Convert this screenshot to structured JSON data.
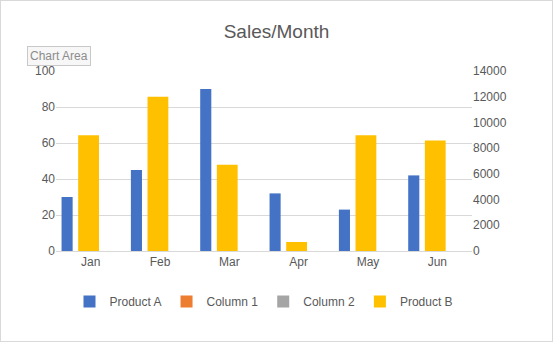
{
  "chart_data": {
    "type": "bar",
    "title": "Sales/Month",
    "categories": [
      "Jan",
      "Feb",
      "Mar",
      "Apr",
      "May",
      "Jun"
    ],
    "series": [
      {
        "name": "Product A",
        "color": "#4472c4",
        "values": [
          30,
          45,
          90,
          32,
          23,
          42
        ]
      },
      {
        "name": "Column 1",
        "color": "#ed7d31",
        "values": [
          null,
          null,
          null,
          null,
          null,
          null
        ]
      },
      {
        "name": "Column 2",
        "color": "#a5a5a5",
        "values": [
          null,
          null,
          null,
          null,
          null,
          null
        ]
      },
      {
        "name": "Product B",
        "color": "#ffc000",
        "axis": "y2",
        "values": [
          9000,
          12000,
          6700,
          700,
          9000,
          8600
        ]
      }
    ],
    "ylim": [
      0,
      100
    ],
    "yticks": [
      0,
      20,
      40,
      60,
      80,
      100
    ],
    "y2lim": [
      0,
      14000
    ],
    "y2ticks": [
      0,
      2000,
      4000,
      6000,
      8000,
      10000,
      12000,
      14000
    ],
    "grid": true,
    "legend": "bottom",
    "annotations": [
      {
        "text": "Chart Area"
      }
    ]
  }
}
